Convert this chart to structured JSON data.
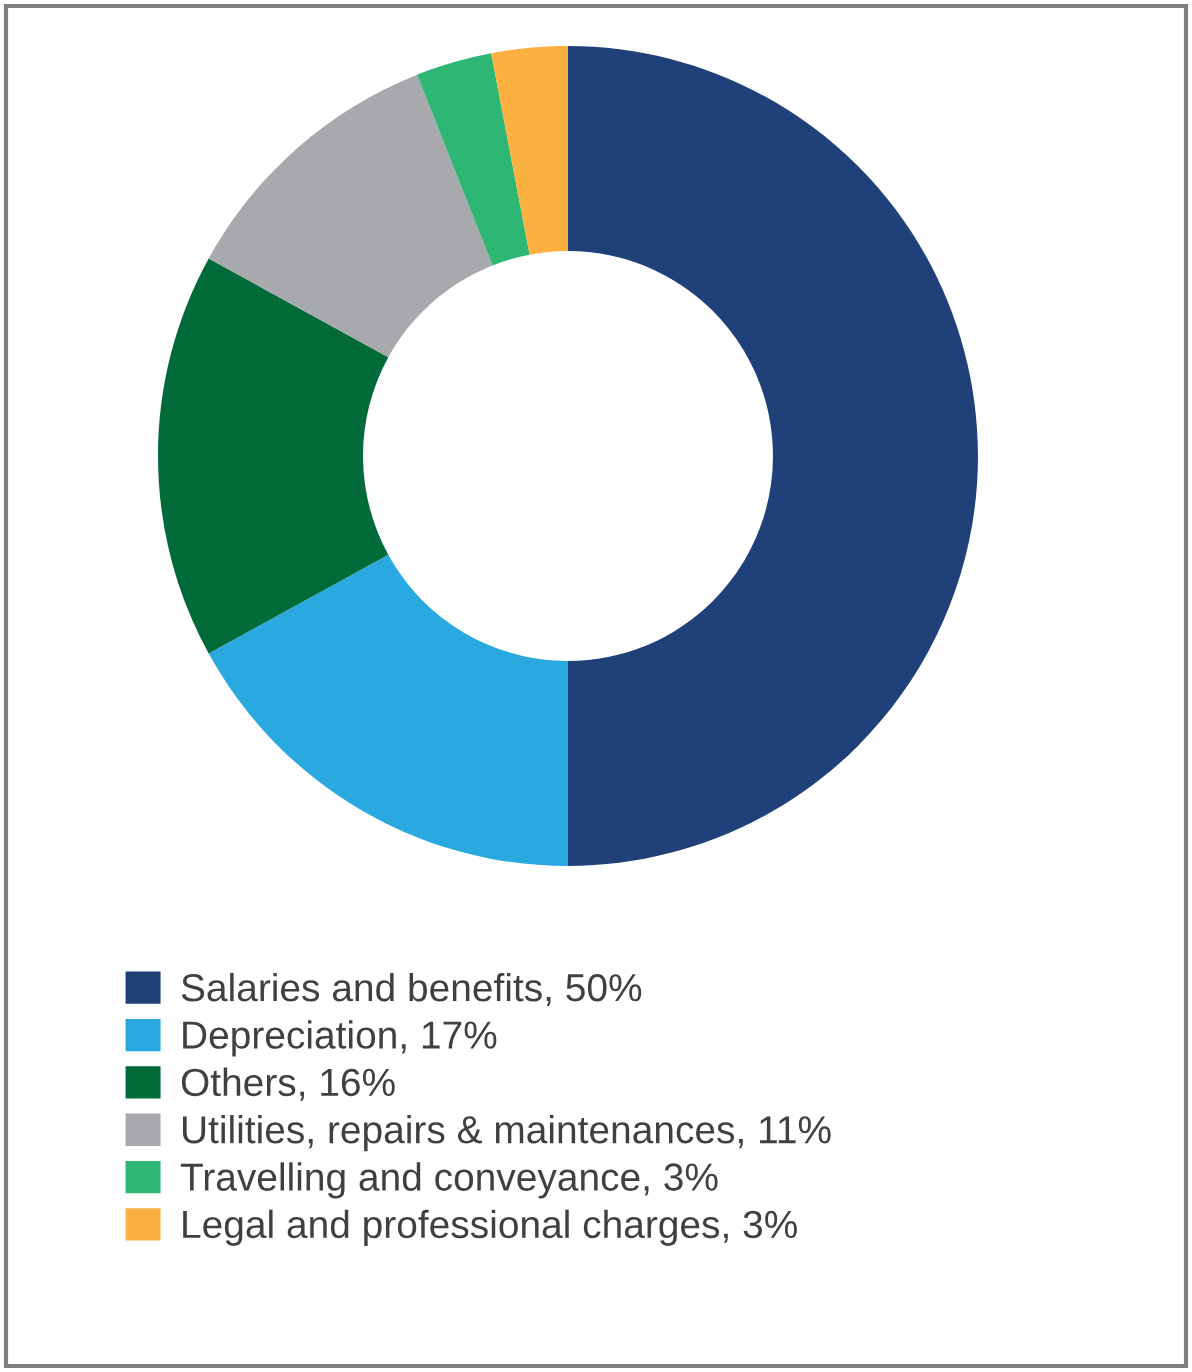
{
  "chart_data": {
    "type": "donut",
    "categories": [
      "Salaries and benefits, 50%",
      "Depreciation, 17%",
      "Others, 16%",
      "Utilities, repairs & maintenances, 11%",
      "Travelling and conveyance, 3%",
      "Legal and professional charges, 3%"
    ],
    "values": [
      50,
      17,
      16,
      11,
      3,
      3
    ],
    "colors": [
      "#1f4079",
      "#2aa9e1",
      "#006a38",
      "#a7a9ac",
      "#2db674",
      "#fbb040"
    ],
    "legend": "bottom"
  }
}
